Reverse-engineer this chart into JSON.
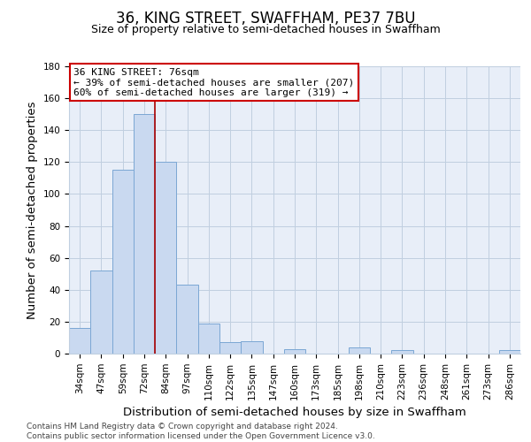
{
  "title": "36, KING STREET, SWAFFHAM, PE37 7BU",
  "subtitle": "Size of property relative to semi-detached houses in Swaffham",
  "bar_labels": [
    "34sqm",
    "47sqm",
    "59sqm",
    "72sqm",
    "84sqm",
    "97sqm",
    "110sqm",
    "122sqm",
    "135sqm",
    "147sqm",
    "160sqm",
    "173sqm",
    "185sqm",
    "198sqm",
    "210sqm",
    "223sqm",
    "236sqm",
    "248sqm",
    "261sqm",
    "273sqm",
    "286sqm"
  ],
  "bar_values": [
    16,
    52,
    115,
    150,
    120,
    43,
    19,
    7,
    8,
    0,
    3,
    0,
    0,
    4,
    0,
    2,
    0,
    0,
    0,
    0,
    2
  ],
  "bar_color": "#c9d9f0",
  "bar_edge_color": "#7ba7d4",
  "vline_x_idx": 3.5,
  "vline_color": "#aa0000",
  "ylabel": "Number of semi-detached properties",
  "xlabel": "Distribution of semi-detached houses by size in Swaffham",
  "ylim": [
    0,
    180
  ],
  "yticks": [
    0,
    20,
    40,
    60,
    80,
    100,
    120,
    140,
    160,
    180
  ],
  "annotation_title": "36 KING STREET: 76sqm",
  "annotation_line1": "← 39% of semi-detached houses are smaller (207)",
  "annotation_line2": "60% of semi-detached houses are larger (319) →",
  "annotation_box_color": "#ffffff",
  "annotation_box_edge_color": "#cc0000",
  "footer_line1": "Contains HM Land Registry data © Crown copyright and database right 2024.",
  "footer_line2": "Contains public sector information licensed under the Open Government Licence v3.0.",
  "background_color": "#ffffff",
  "plot_bg_color": "#e8eef8",
  "grid_color": "#c0cfe0",
  "title_fontsize": 12,
  "subtitle_fontsize": 9,
  "axis_label_fontsize": 9.5,
  "tick_fontsize": 7.5,
  "footer_fontsize": 6.5
}
